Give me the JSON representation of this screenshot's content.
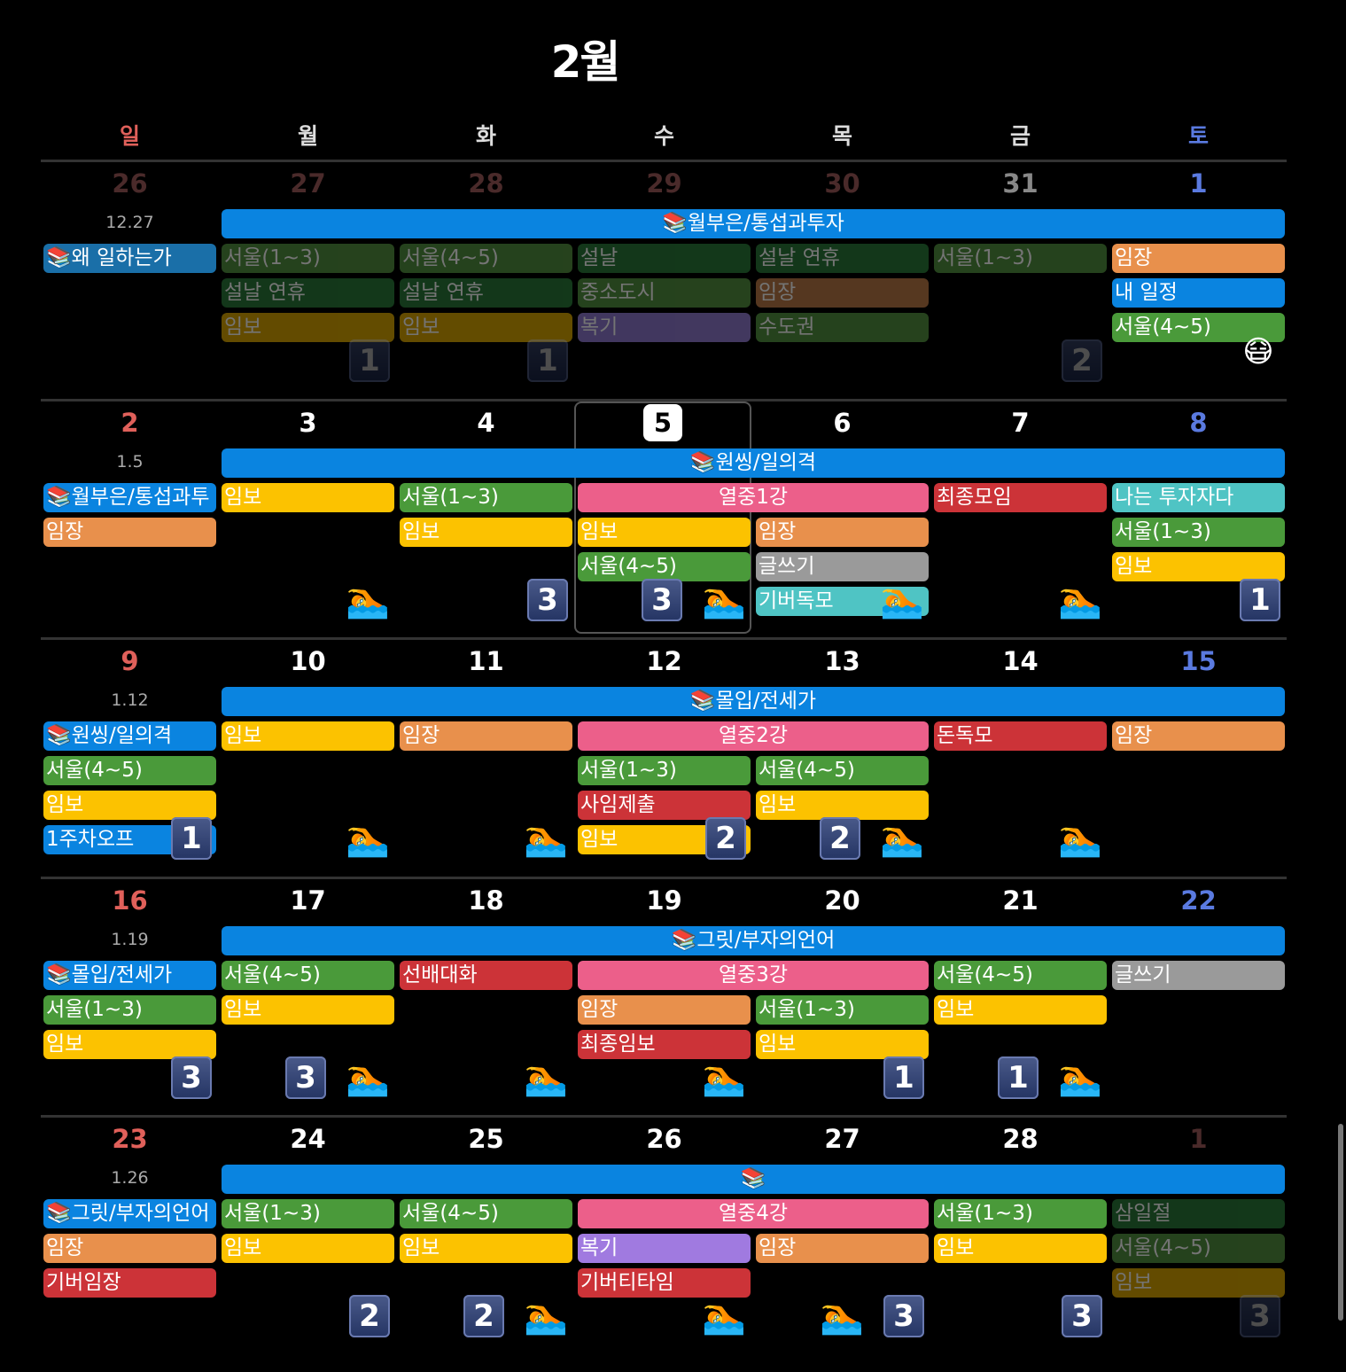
{
  "title": "2월",
  "weekdays": [
    {
      "label": "일",
      "color": "#e0605a"
    },
    {
      "label": "월",
      "color": "#dddddd"
    },
    {
      "label": "화",
      "color": "#dddddd"
    },
    {
      "label": "수",
      "color": "#dddddd"
    },
    {
      "label": "목",
      "color": "#dddddd"
    },
    {
      "label": "금",
      "color": "#dddddd"
    },
    {
      "label": "토",
      "color": "#5a7ae0"
    }
  ],
  "colors": {
    "blue": "#0a84e0",
    "dimblue": "#1a6fa8",
    "yellow": "#fcc200",
    "dimyellow": "#a07a00",
    "green": "#4a9a3a",
    "dimgreen": "#3d6b2f",
    "dkgreen": "#1f5a2a",
    "orange": "#e8904c",
    "brown": "#8a5a34",
    "pink": "#ec5f8a",
    "red": "#cc3338",
    "teal": "#4fc4c4",
    "gray": "#9a9a9a",
    "purple": "#a07ae0",
    "dimpurple": "#6a5a9a"
  },
  "weeks": [
    {
      "label": "12.27",
      "days": [
        {
          "n": "26",
          "c": "#4a2a2a"
        },
        {
          "n": "27",
          "c": "#4a2a2a"
        },
        {
          "n": "28",
          "c": "#4a2a2a"
        },
        {
          "n": "29",
          "c": "#4a2a2a"
        },
        {
          "n": "30",
          "c": "#4a2a2a"
        },
        {
          "n": "31",
          "c": "#888888"
        },
        {
          "n": "1",
          "c": "#5a7ae0"
        }
      ],
      "span": "📚월부은/통섭과투자",
      "events": [
        {
          "c": 0,
          "r": 0,
          "t": "📚왜 일하는가",
          "k": "dimblue"
        },
        {
          "c": 1,
          "r": 0,
          "t": "서울(1~3)",
          "k": "dimgreen",
          "d": 1
        },
        {
          "c": 2,
          "r": 0,
          "t": "서울(4~5)",
          "k": "dimgreen",
          "d": 1
        },
        {
          "c": 3,
          "r": 0,
          "t": "설날",
          "k": "dkgreen",
          "d": 1
        },
        {
          "c": 4,
          "r": 0,
          "t": "설날 연휴",
          "k": "dkgreen",
          "d": 1
        },
        {
          "c": 5,
          "r": 0,
          "t": "서울(1~3)",
          "k": "dimgreen",
          "d": 1
        },
        {
          "c": 6,
          "r": 0,
          "t": "임장",
          "k": "orange"
        },
        {
          "c": 1,
          "r": 1,
          "t": "설날 연휴",
          "k": "dkgreen",
          "d": 1
        },
        {
          "c": 2,
          "r": 1,
          "t": "설날 연휴",
          "k": "dkgreen",
          "d": 1
        },
        {
          "c": 3,
          "r": 1,
          "t": "중소도시",
          "k": "dimgreen",
          "d": 1
        },
        {
          "c": 4,
          "r": 1,
          "t": "임장",
          "k": "brown",
          "d": 1
        },
        {
          "c": 6,
          "r": 1,
          "t": "내 일정",
          "k": "blue"
        },
        {
          "c": 1,
          "r": 2,
          "t": "임보",
          "k": "dimyellow",
          "d": 1
        },
        {
          "c": 2,
          "r": 2,
          "t": "임보",
          "k": "dimyellow",
          "d": 1
        },
        {
          "c": 3,
          "r": 2,
          "t": "복기",
          "k": "dimpurple",
          "d": 1
        },
        {
          "c": 4,
          "r": 2,
          "t": "수도권",
          "k": "dimgreen",
          "d": 1
        },
        {
          "c": 6,
          "r": 2,
          "t": "서울(4~5)",
          "k": "green"
        }
      ],
      "marks": [
        {
          "c": 1,
          "m": [
            "b1d"
          ]
        },
        {
          "c": 2,
          "m": [
            "b1d"
          ]
        },
        {
          "c": 5,
          "m": [
            "b2d"
          ]
        },
        {
          "c": 6,
          "m": [
            "sticker"
          ]
        }
      ]
    },
    {
      "label": "1.5",
      "days": [
        {
          "n": "2",
          "c": "#e0605a"
        },
        {
          "n": "3",
          "c": "#ffffff"
        },
        {
          "n": "4",
          "c": "#ffffff"
        },
        {
          "n": "5",
          "c": "#000000"
        },
        {
          "n": "6",
          "c": "#ffffff"
        },
        {
          "n": "7",
          "c": "#ffffff"
        },
        {
          "n": "8",
          "c": "#5a7ae0"
        }
      ],
      "span": "📚원씽/일의격",
      "events": [
        {
          "c": 0,
          "r": 0,
          "t": "📚월부은/통섭과투",
          "k": "blue"
        },
        {
          "c": 1,
          "r": 0,
          "t": "임보",
          "k": "yellow"
        },
        {
          "c": 2,
          "r": 0,
          "t": "서울(1~3)",
          "k": "green"
        },
        {
          "c": 3,
          "r": 0,
          "s": 2,
          "t": "열중1강",
          "k": "pink"
        },
        {
          "c": 5,
          "r": 0,
          "t": "최종모임",
          "k": "red"
        },
        {
          "c": 6,
          "r": 0,
          "t": "나는 투자자다",
          "k": "teal"
        },
        {
          "c": 0,
          "r": 1,
          "t": "임장",
          "k": "orange"
        },
        {
          "c": 2,
          "r": 1,
          "t": "임보",
          "k": "yellow"
        },
        {
          "c": 3,
          "r": 1,
          "t": "임보",
          "k": "yellow"
        },
        {
          "c": 4,
          "r": 1,
          "t": "임장",
          "k": "orange"
        },
        {
          "c": 6,
          "r": 1,
          "t": "서울(1~3)",
          "k": "green"
        },
        {
          "c": 3,
          "r": 2,
          "t": "서울(4~5)",
          "k": "green"
        },
        {
          "c": 4,
          "r": 2,
          "t": "글쓰기",
          "k": "gray"
        },
        {
          "c": 6,
          "r": 2,
          "t": "임보",
          "k": "yellow"
        },
        {
          "c": 4,
          "r": 3,
          "t": "기버독모",
          "k": "teal"
        }
      ],
      "marks": [
        {
          "c": 1,
          "m": [
            "swim"
          ]
        },
        {
          "c": 2,
          "m": [
            "b3"
          ]
        },
        {
          "c": 3,
          "m": [
            "b3",
            "swim"
          ]
        },
        {
          "c": 4,
          "m": [
            "swim"
          ]
        },
        {
          "c": 5,
          "m": [
            "swim"
          ]
        },
        {
          "c": 6,
          "m": [
            "b1"
          ]
        }
      ]
    },
    {
      "label": "1.12",
      "days": [
        {
          "n": "9",
          "c": "#e0605a"
        },
        {
          "n": "10",
          "c": "#ffffff"
        },
        {
          "n": "11",
          "c": "#ffffff"
        },
        {
          "n": "12",
          "c": "#ffffff"
        },
        {
          "n": "13",
          "c": "#ffffff"
        },
        {
          "n": "14",
          "c": "#ffffff"
        },
        {
          "n": "15",
          "c": "#5a7ae0"
        }
      ],
      "span": "📚몰입/전세가",
      "events": [
        {
          "c": 0,
          "r": 0,
          "t": "📚원씽/일의격",
          "k": "blue"
        },
        {
          "c": 1,
          "r": 0,
          "t": "임보",
          "k": "yellow"
        },
        {
          "c": 2,
          "r": 0,
          "t": "임장",
          "k": "orange"
        },
        {
          "c": 3,
          "r": 0,
          "s": 2,
          "t": "열중2강",
          "k": "pink"
        },
        {
          "c": 5,
          "r": 0,
          "t": "돈독모",
          "k": "red"
        },
        {
          "c": 6,
          "r": 0,
          "t": "임장",
          "k": "orange"
        },
        {
          "c": 0,
          "r": 1,
          "t": "서울(4~5)",
          "k": "green"
        },
        {
          "c": 3,
          "r": 1,
          "t": "서울(1~3)",
          "k": "green"
        },
        {
          "c": 4,
          "r": 1,
          "t": "서울(4~5)",
          "k": "green"
        },
        {
          "c": 0,
          "r": 2,
          "t": "임보",
          "k": "yellow"
        },
        {
          "c": 3,
          "r": 2,
          "t": "사임제출",
          "k": "red"
        },
        {
          "c": 4,
          "r": 2,
          "t": "임보",
          "k": "yellow"
        },
        {
          "c": 0,
          "r": 3,
          "t": "1주차오프",
          "k": "blue"
        },
        {
          "c": 3,
          "r": 3,
          "t": "임보",
          "k": "yellow"
        }
      ],
      "marks": [
        {
          "c": 0,
          "m": [
            "b1"
          ]
        },
        {
          "c": 1,
          "m": [
            "swim"
          ]
        },
        {
          "c": 2,
          "m": [
            "swim"
          ]
        },
        {
          "c": 3,
          "m": [
            "b2"
          ]
        },
        {
          "c": 4,
          "m": [
            "b2",
            "swim"
          ]
        },
        {
          "c": 5,
          "m": [
            "swim"
          ]
        }
      ]
    },
    {
      "label": "1.19",
      "days": [
        {
          "n": "16",
          "c": "#e0605a"
        },
        {
          "n": "17",
          "c": "#ffffff"
        },
        {
          "n": "18",
          "c": "#ffffff"
        },
        {
          "n": "19",
          "c": "#ffffff"
        },
        {
          "n": "20",
          "c": "#ffffff"
        },
        {
          "n": "21",
          "c": "#ffffff"
        },
        {
          "n": "22",
          "c": "#5a7ae0"
        }
      ],
      "span": "📚그릿/부자의언어",
      "events": [
        {
          "c": 0,
          "r": 0,
          "t": "📚몰입/전세가",
          "k": "blue"
        },
        {
          "c": 1,
          "r": 0,
          "t": "서울(4~5)",
          "k": "green"
        },
        {
          "c": 2,
          "r": 0,
          "t": "선배대화",
          "k": "red"
        },
        {
          "c": 3,
          "r": 0,
          "s": 2,
          "t": "열중3강",
          "k": "pink"
        },
        {
          "c": 5,
          "r": 0,
          "t": "서울(4~5)",
          "k": "green"
        },
        {
          "c": 6,
          "r": 0,
          "t": "글쓰기",
          "k": "gray"
        },
        {
          "c": 0,
          "r": 1,
          "t": "서울(1~3)",
          "k": "green"
        },
        {
          "c": 1,
          "r": 1,
          "t": "임보",
          "k": "yellow"
        },
        {
          "c": 3,
          "r": 1,
          "t": "임장",
          "k": "orange"
        },
        {
          "c": 4,
          "r": 1,
          "t": "서울(1~3)",
          "k": "green"
        },
        {
          "c": 5,
          "r": 1,
          "t": "임보",
          "k": "yellow"
        },
        {
          "c": 0,
          "r": 2,
          "t": "임보",
          "k": "yellow"
        },
        {
          "c": 3,
          "r": 2,
          "t": "최종임보",
          "k": "red"
        },
        {
          "c": 4,
          "r": 2,
          "t": "임보",
          "k": "yellow"
        }
      ],
      "marks": [
        {
          "c": 0,
          "m": [
            "b3"
          ]
        },
        {
          "c": 1,
          "m": [
            "b3",
            "swim"
          ]
        },
        {
          "c": 2,
          "m": [
            "swim"
          ]
        },
        {
          "c": 3,
          "m": [
            "swim"
          ]
        },
        {
          "c": 4,
          "m": [
            "b1"
          ]
        },
        {
          "c": 5,
          "m": [
            "b1",
            "swim"
          ]
        }
      ]
    },
    {
      "label": "1.26",
      "days": [
        {
          "n": "23",
          "c": "#e0605a"
        },
        {
          "n": "24",
          "c": "#ffffff"
        },
        {
          "n": "25",
          "c": "#ffffff"
        },
        {
          "n": "26",
          "c": "#ffffff"
        },
        {
          "n": "27",
          "c": "#ffffff"
        },
        {
          "n": "28",
          "c": "#ffffff"
        },
        {
          "n": "1",
          "c": "#4a2a2a"
        }
      ],
      "span": "📚",
      "events": [
        {
          "c": 0,
          "r": 0,
          "t": "📚그릿/부자의언어",
          "k": "blue"
        },
        {
          "c": 1,
          "r": 0,
          "t": "서울(1~3)",
          "k": "green"
        },
        {
          "c": 2,
          "r": 0,
          "t": "서울(4~5)",
          "k": "green"
        },
        {
          "c": 3,
          "r": 0,
          "s": 2,
          "t": "열중4강",
          "k": "pink"
        },
        {
          "c": 5,
          "r": 0,
          "t": "서울(1~3)",
          "k": "green"
        },
        {
          "c": 6,
          "r": 0,
          "t": "삼일절",
          "k": "dkgreen",
          "d": 1
        },
        {
          "c": 0,
          "r": 1,
          "t": "임장",
          "k": "orange"
        },
        {
          "c": 1,
          "r": 1,
          "t": "임보",
          "k": "yellow"
        },
        {
          "c": 2,
          "r": 1,
          "t": "임보",
          "k": "yellow"
        },
        {
          "c": 3,
          "r": 1,
          "t": "복기",
          "k": "purple"
        },
        {
          "c": 4,
          "r": 1,
          "t": "임장",
          "k": "orange"
        },
        {
          "c": 5,
          "r": 1,
          "t": "임보",
          "k": "yellow"
        },
        {
          "c": 6,
          "r": 1,
          "t": "서울(4~5)",
          "k": "dimgreen",
          "d": 1
        },
        {
          "c": 0,
          "r": 2,
          "t": "기버임장",
          "k": "red"
        },
        {
          "c": 3,
          "r": 2,
          "t": "기버티타임",
          "k": "red"
        },
        {
          "c": 6,
          "r": 2,
          "t": "임보",
          "k": "dimyellow",
          "d": 1
        }
      ],
      "marks": [
        {
          "c": 1,
          "m": [
            "b2"
          ]
        },
        {
          "c": 2,
          "m": [
            "b2",
            "swim"
          ]
        },
        {
          "c": 3,
          "m": [
            "swim"
          ]
        },
        {
          "c": 4,
          "m": [
            "swim",
            "b3"
          ]
        },
        {
          "c": 5,
          "m": [
            "b3"
          ]
        },
        {
          "c": 6,
          "m": [
            "b3d"
          ]
        }
      ]
    }
  ],
  "icons": {
    "swim": "🏊",
    "sticker": "😷"
  }
}
